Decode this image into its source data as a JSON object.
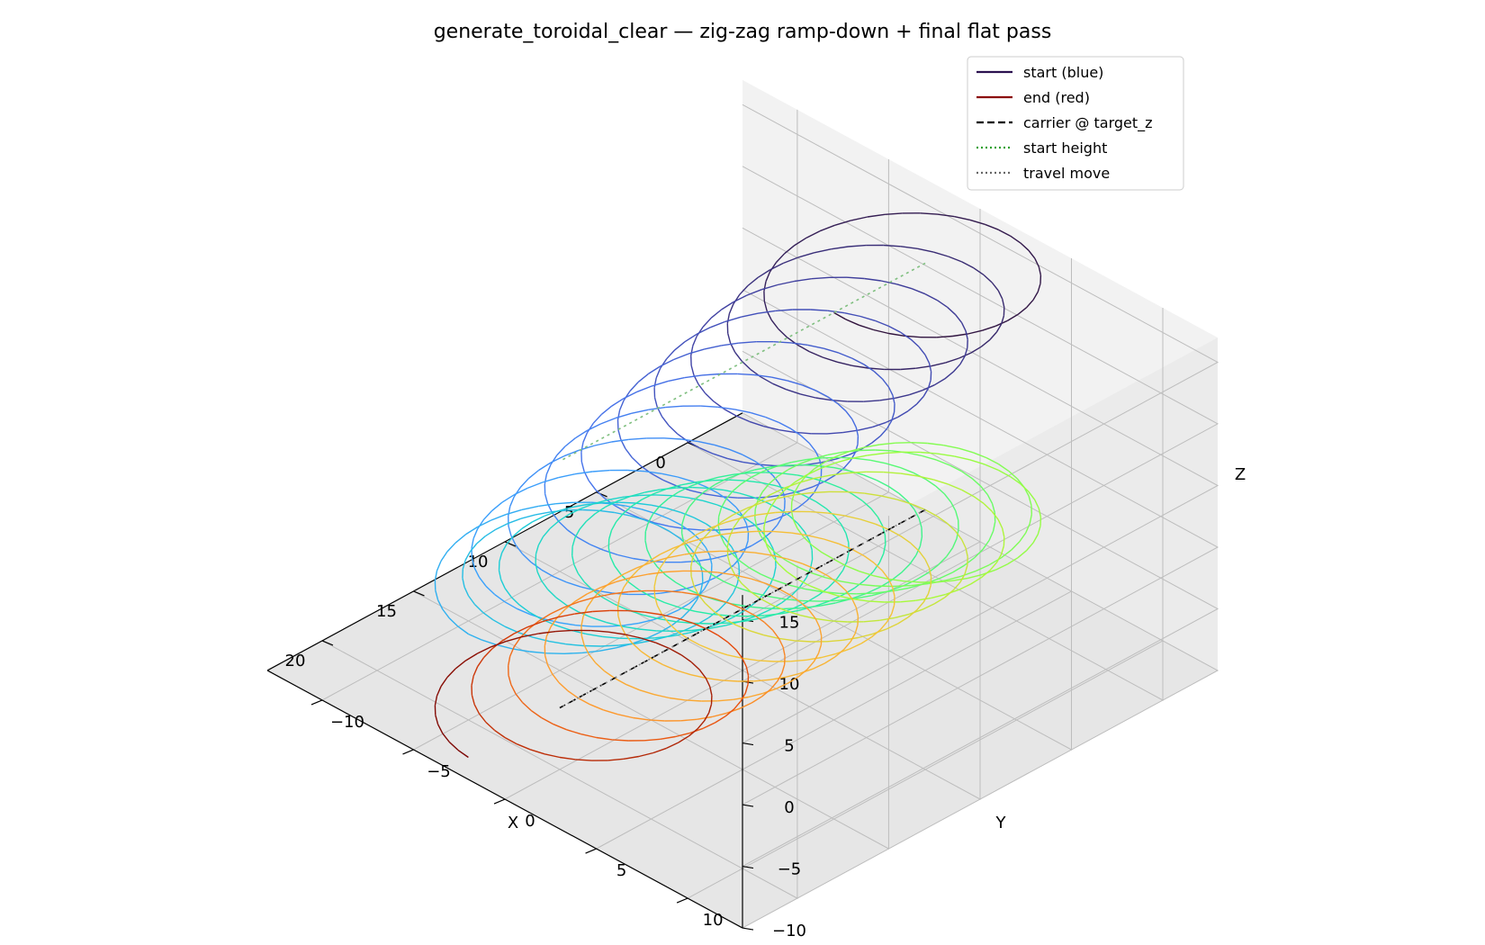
{
  "chart_data": {
    "type": "line",
    "projection": "3d",
    "title": "generate_toroidal_clear — zig-zag ramp-down + final flat pass",
    "xlabel": "X",
    "ylabel": "Y",
    "zlabel": "Z",
    "xlim": [
      -3,
      23
    ],
    "ylim": [
      -13,
      13
    ],
    "zlim": [
      -10,
      17
    ],
    "x_ticks": [
      {
        "value": 0,
        "label": "0"
      },
      {
        "value": 5,
        "label": "5"
      },
      {
        "value": 10,
        "label": "10"
      },
      {
        "value": 15,
        "label": "15"
      },
      {
        "value": 20,
        "label": "20"
      }
    ],
    "y_ticks": [
      {
        "value": -10,
        "label": "−10"
      },
      {
        "value": -5,
        "label": "−5"
      },
      {
        "value": 0,
        "label": "0"
      },
      {
        "value": 5,
        "label": "5"
      },
      {
        "value": 10,
        "label": "10"
      }
    ],
    "z_ticks": [
      {
        "value": -10,
        "label": "−10"
      },
      {
        "value": -5,
        "label": "−5"
      },
      {
        "value": 0,
        "label": "0"
      },
      {
        "value": 5,
        "label": "5"
      },
      {
        "value": 10,
        "label": "10"
      },
      {
        "value": 15,
        "label": "15"
      }
    ],
    "grid": true,
    "legend_position": "top-right",
    "legend": [
      {
        "label": "start (blue)",
        "color": "#2b1250",
        "style": "solid"
      },
      {
        "label": "end (red)",
        "color": "#8b0000",
        "style": "solid"
      },
      {
        "label": "carrier @ target_z",
        "color": "#000000",
        "style": "dashed"
      },
      {
        "label": "start height",
        "color": "#2ca02c",
        "style": "dotted"
      },
      {
        "label": "travel move",
        "color": "#666666",
        "style": "dotted"
      }
    ],
    "toroidal_path": {
      "colormap": "turbo",
      "loop_radius": 5,
      "passes": [
        {
          "x_start": 0,
          "x_end": 20,
          "y_start": 0,
          "y_end": 0,
          "z_start": 15,
          "z_end": 5,
          "loops": 10
        },
        {
          "x_start": 20,
          "x_end": 0,
          "y_start": 0,
          "y_end": 0,
          "z_start": 5,
          "z_end": -5,
          "loops": 10
        },
        {
          "x_start": 0,
          "x_end": 20,
          "y_start": 0,
          "y_end": 0,
          "z_start": -5,
          "z_end": -5,
          "loops": 10
        }
      ]
    },
    "carrier_line": {
      "x": [
        0,
        20
      ],
      "y": [
        0,
        0
      ],
      "z": [
        -5,
        -5
      ]
    },
    "start_height_line": {
      "x": [
        0,
        20
      ],
      "y": [
        0,
        0
      ],
      "z": [
        15,
        15
      ]
    },
    "travel_move_line": {
      "x": [
        0,
        20
      ],
      "y": [
        0,
        0
      ],
      "z": [
        -5,
        -5
      ]
    }
  }
}
